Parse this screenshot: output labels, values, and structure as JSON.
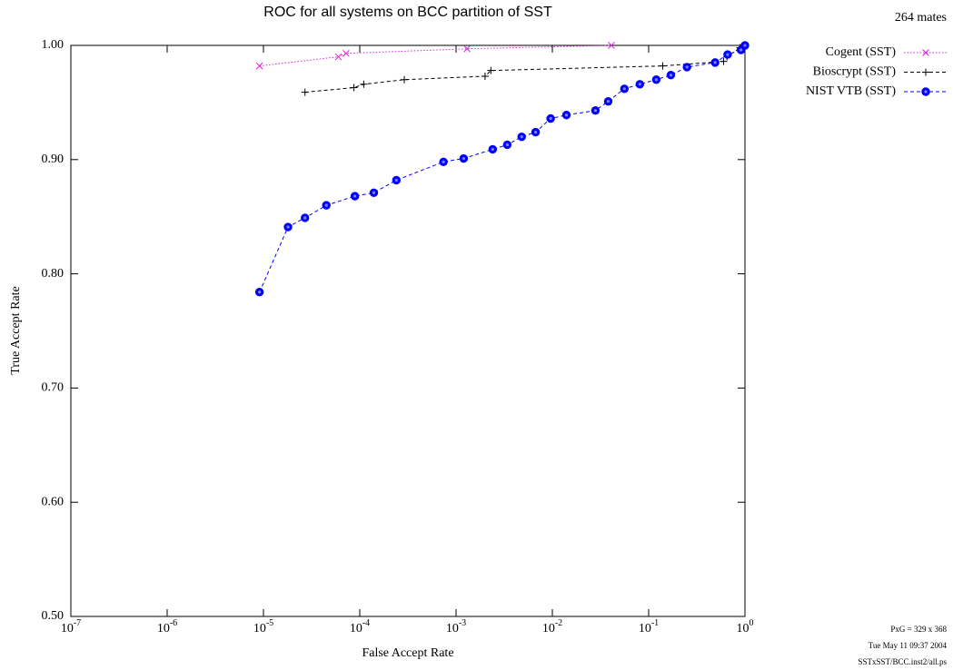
{
  "chart_data": {
    "type": "line",
    "title": "ROC for all systems on BCC partition of SST",
    "x_label": "False Accept Rate",
    "y_label": "True Accept Rate",
    "annotations": [
      "264 mates",
      "PxG = 329 x 368",
      "Tue May 11 09:37 2004",
      "SSTxSST/BCC.inst2/all.ps"
    ],
    "x_scale": "log",
    "xlim": [
      1e-07,
      1
    ],
    "ylim": [
      0.5,
      1.0
    ],
    "xticks": [
      {
        "value": 1e-07,
        "label": "10-7"
      },
      {
        "value": 1e-06,
        "label": "10-6"
      },
      {
        "value": 1e-05,
        "label": "10-5"
      },
      {
        "value": 0.0001,
        "label": "10-4"
      },
      {
        "value": 0.001,
        "label": "10-3"
      },
      {
        "value": 0.01,
        "label": "10-2"
      },
      {
        "value": 0.1,
        "label": "10-1"
      },
      {
        "value": 1,
        "label": "100"
      }
    ],
    "yticks": [
      {
        "value": 0.5,
        "label": "0.50"
      },
      {
        "value": 0.6,
        "label": "0.60"
      },
      {
        "value": 0.7,
        "label": "0.70"
      },
      {
        "value": 0.8,
        "label": "0.80"
      },
      {
        "value": 0.9,
        "label": "0.90"
      },
      {
        "value": 1.0,
        "label": "1.00"
      }
    ],
    "legend": "top-right-outside",
    "series": [
      {
        "name": "Cogent (SST)",
        "color": "#e020e0",
        "marker": "x",
        "line_style": "dotted",
        "x": [
          9.1e-06,
          6e-05,
          7.2e-05,
          0.0013,
          0.041
        ],
        "values": [
          0.982,
          0.99,
          0.993,
          0.997,
          1.0
        ]
      },
      {
        "name": "Bioscrypt (SST)",
        "color": "#000000",
        "marker": "+",
        "line_style": "dashed",
        "x": [
          2.7e-05,
          8.7e-05,
          0.00011,
          0.00029,
          0.002,
          0.0023,
          0.14,
          0.6,
          0.65,
          0.89,
          1.0
        ],
        "values": [
          0.959,
          0.963,
          0.966,
          0.97,
          0.973,
          0.978,
          0.982,
          0.986,
          0.99,
          0.998,
          1.0
        ]
      },
      {
        "name": "NIST VTB (SST)",
        "color": "#0000ff",
        "marker": "o",
        "line_style": "dashed",
        "x": [
          9.1e-06,
          1.8e-05,
          2.7e-05,
          4.5e-05,
          8.9e-05,
          0.00014,
          0.00024,
          0.00074,
          0.0012,
          0.0024,
          0.0034,
          0.0048,
          0.0067,
          0.0096,
          0.014,
          0.028,
          0.038,
          0.056,
          0.081,
          0.12,
          0.17,
          0.25,
          0.49,
          0.66,
          0.91,
          1.0
        ],
        "values": [
          0.784,
          0.841,
          0.849,
          0.86,
          0.868,
          0.871,
          0.882,
          0.898,
          0.901,
          0.909,
          0.913,
          0.92,
          0.924,
          0.936,
          0.939,
          0.943,
          0.951,
          0.962,
          0.966,
          0.97,
          0.974,
          0.981,
          0.985,
          0.992,
          0.996,
          1.0
        ]
      }
    ]
  }
}
